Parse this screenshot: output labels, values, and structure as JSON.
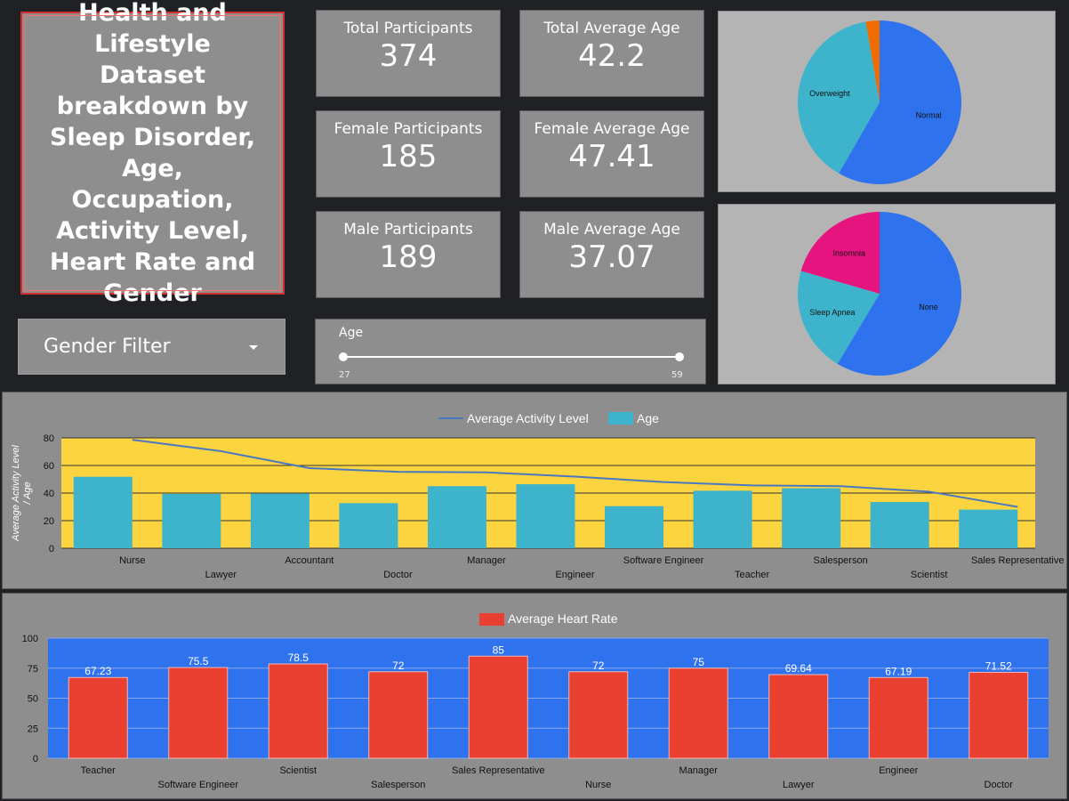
{
  "title": "Health and Lifestyle Dataset breakdown by Sleep Disorder, Age, Occupation, Activity Level, Heart Rate and Gender",
  "kpis": [
    {
      "label": "Total Participants",
      "value": "374"
    },
    {
      "label": "Total Average Age",
      "value": "42.2"
    },
    {
      "label": "Female Participants",
      "value": "185"
    },
    {
      "label": "Female Average Age",
      "value": "47.41"
    },
    {
      "label": "Male Participants",
      "value": "189"
    },
    {
      "label": "Male Average Age",
      "value": "37.07"
    }
  ],
  "filter": {
    "label": "Gender Filter",
    "icon": "chevron-down-icon"
  },
  "age_slider": {
    "label": "Age",
    "min": "27",
    "max": "59",
    "low": 27,
    "high": 59
  },
  "colors": {
    "blue": "#2f72ee",
    "teal": "#3db4cc",
    "orange": "#ef6c00",
    "magenta": "#e5147f",
    "red": "#ea4032",
    "yellow": "#fcd440",
    "line": "#4a78c0"
  },
  "chart_data": [
    {
      "type": "pie",
      "slices": [
        {
          "label": "Normal",
          "value": 58.3,
          "color": "#2f72ee"
        },
        {
          "label": "Overweight",
          "value": 39.0,
          "color": "#3db4cc"
        },
        {
          "label": "",
          "value": 2.7,
          "color": "#ef6c00"
        }
      ]
    },
    {
      "type": "pie",
      "slices": [
        {
          "label": "None",
          "value": 58.6,
          "color": "#2f72ee"
        },
        {
          "label": "Sleep Apnea",
          "value": 20.9,
          "color": "#3db4cc"
        },
        {
          "label": "Insomnia",
          "value": 20.5,
          "color": "#e5147f"
        }
      ]
    },
    {
      "type": "bar",
      "ylabel": "Average Activity Level / Age",
      "ylim": [
        0,
        80
      ],
      "yticks": [
        0,
        20,
        40,
        60,
        80
      ],
      "legend": "top",
      "categories": [
        "Nurse",
        "Lawyer",
        "Accountant",
        "Doctor",
        "Manager",
        "Engineer",
        "Software Engineer",
        "Teacher",
        "Salesperson",
        "Scientist",
        "Sales Representative"
      ],
      "series": [
        {
          "name": "Average Activity Level",
          "kind": "line",
          "values": [
            78.6,
            70.4,
            58.1,
            55.4,
            55,
            51.9,
            48,
            45.6,
            45,
            41,
            30
          ]
        },
        {
          "name": "Age",
          "kind": "bar",
          "values": [
            51.8,
            39.4,
            39.6,
            32.7,
            45,
            46.4,
            30.5,
            41.7,
            43.5,
            33.5,
            28
          ]
        }
      ]
    },
    {
      "type": "bar",
      "ylim": [
        0,
        100
      ],
      "yticks": [
        0,
        25,
        50,
        75,
        100
      ],
      "legend": "top",
      "categories": [
        "Teacher",
        "Software Engineer",
        "Scientist",
        "Salesperson",
        "Sales Representative",
        "Nurse",
        "Manager",
        "Lawyer",
        "Engineer",
        "Doctor"
      ],
      "series": [
        {
          "name": "Average Heart Rate",
          "values": [
            67.23,
            75.5,
            78.5,
            72,
            85,
            72,
            75,
            69.64,
            67.19,
            71.52
          ],
          "labels": [
            "67.23",
            "75.5",
            "78.5",
            "72",
            "85",
            "72",
            "75",
            "69.64",
            "67.19",
            "71.52"
          ]
        }
      ]
    }
  ]
}
